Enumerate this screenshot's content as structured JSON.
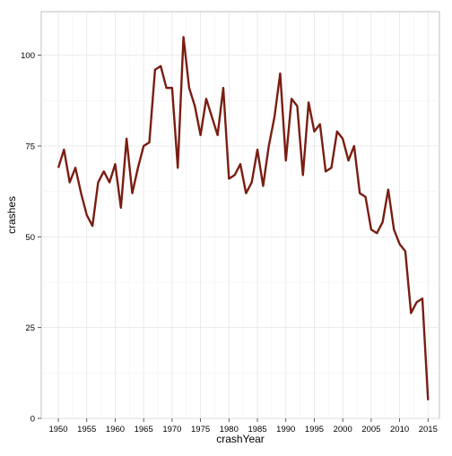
{
  "chart_data": {
    "type": "line",
    "title": "",
    "xlabel": "crashYear",
    "ylabel": "crashes",
    "xlim": [
      1947,
      2017
    ],
    "ylim": [
      0,
      112
    ],
    "grid": true,
    "x_ticks": [
      1950,
      1955,
      1960,
      1965,
      1970,
      1975,
      1980,
      1985,
      1990,
      1995,
      2000,
      2005,
      2010,
      2015
    ],
    "x_tick_labels": [
      "1950",
      "1955",
      "1960",
      "1965",
      "1970",
      "1975",
      "1980",
      "1985",
      "1990",
      "1995",
      "2000",
      "2005",
      "2010",
      "2015"
    ],
    "y_ticks": [
      0,
      25,
      50,
      75,
      100
    ],
    "y_tick_labels": [
      "0",
      "25",
      "50",
      "75",
      "100"
    ],
    "line_color": "#7a1d12",
    "series": [
      {
        "x": [
          1950,
          1951,
          1952,
          1953,
          1954,
          1955,
          1956,
          1957,
          1958,
          1959,
          1960,
          1961,
          1962,
          1963,
          1964,
          1965,
          1966,
          1967,
          1968,
          1969,
          1970,
          1971,
          1972,
          1973,
          1974,
          1975,
          1976,
          1977,
          1978,
          1979,
          1980,
          1981,
          1982,
          1983,
          1984,
          1985,
          1986,
          1987,
          1988,
          1989,
          1990,
          1991,
          1992,
          1993,
          1994,
          1995,
          1996,
          1997,
          1998,
          1999,
          2000,
          2001,
          2002,
          2003,
          2004,
          2005,
          2006,
          2007,
          2008,
          2009,
          2010,
          2011,
          2012,
          2013,
          2014,
          2015
        ],
        "values": [
          69,
          74,
          65,
          69,
          62,
          56,
          53,
          65,
          68,
          65,
          70,
          58,
          77,
          62,
          69,
          75,
          76,
          96,
          97,
          91,
          91,
          69,
          105,
          91,
          86,
          78,
          88,
          83,
          78,
          91,
          66,
          67,
          70,
          62,
          65,
          74,
          64,
          75,
          83,
          95,
          71,
          88,
          86,
          67,
          87,
          79,
          81,
          68,
          69,
          79,
          77,
          71,
          75,
          62,
          61,
          52,
          51,
          54,
          63,
          52,
          48,
          46,
          29,
          32,
          33,
          5
        ]
      }
    ]
  }
}
